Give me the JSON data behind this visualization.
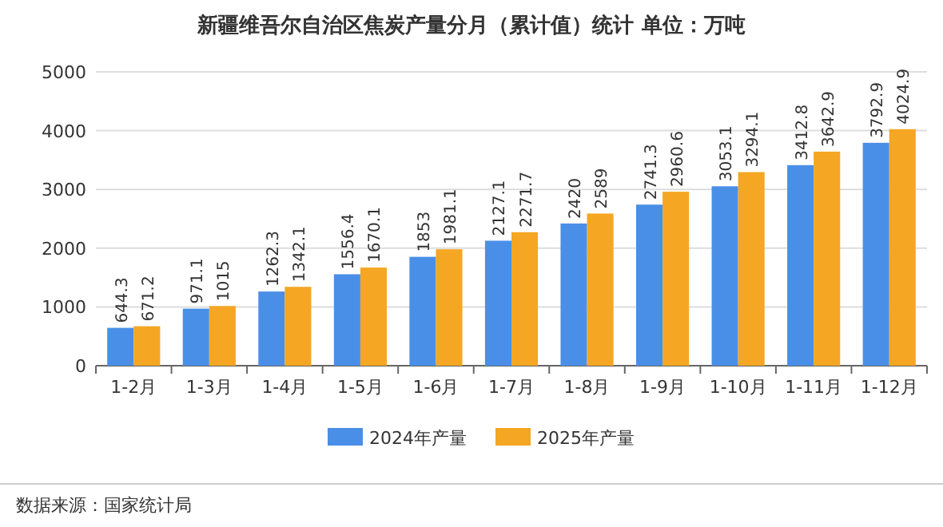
{
  "chart_data": {
    "type": "bar",
    "title": "新疆维吾尔自治区焦炭产量分月（累计值）统计  单位：万吨",
    "categories": [
      "1-2月",
      "1-3月",
      "1-4月",
      "1-5月",
      "1-6月",
      "1-7月",
      "1-8月",
      "1-9月",
      "1-10月",
      "1-11月",
      "1-12月"
    ],
    "series": [
      {
        "name": "2024年产量",
        "color": "#4a8fe7",
        "values": [
          644.3,
          971.1,
          1262.3,
          1556.4,
          1853,
          2127.1,
          2420,
          2741.3,
          3053.1,
          3412.8,
          3792.9
        ]
      },
      {
        "name": "2025年产量",
        "color": "#f5a623",
        "values": [
          671.2,
          1015,
          1342.1,
          1670.1,
          1981.1,
          2271.7,
          2589,
          2960.6,
          3294.1,
          3642.9,
          4024.9
        ]
      }
    ],
    "ylim": [
      0,
      5000
    ],
    "yticks": [
      0,
      1000,
      2000,
      3000,
      4000,
      5000
    ],
    "grid": "y",
    "legend": "bottom",
    "data_labels": true,
    "annotations": [
      "数据来源：国家统计局"
    ]
  }
}
